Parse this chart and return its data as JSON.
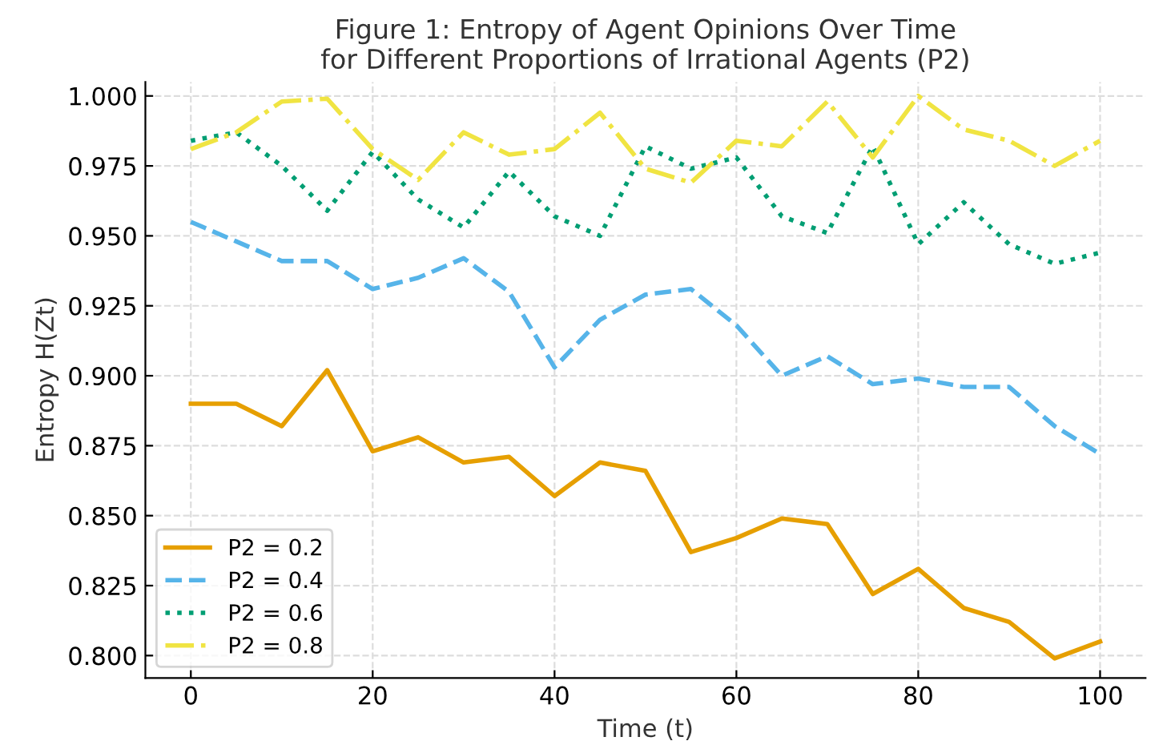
{
  "chart_data": {
    "type": "line",
    "title": "Figure 1: Entropy of Agent Opinions Over Time\nfor Different Proportions of Irrational Agents (P2)",
    "xlabel": "Time (t)",
    "ylabel": "Entropy H(Zt)",
    "x": [
      0,
      5,
      10,
      15,
      20,
      25,
      30,
      35,
      40,
      45,
      50,
      55,
      60,
      65,
      70,
      75,
      80,
      85,
      90,
      95,
      100
    ],
    "series": [
      {
        "name": "P2 = 0.2",
        "color": "#e69f00",
        "line_style": "solid",
        "values": [
          0.89,
          0.89,
          0.882,
          0.902,
          0.873,
          0.878,
          0.869,
          0.871,
          0.857,
          0.869,
          0.866,
          0.837,
          0.842,
          0.849,
          0.847,
          0.822,
          0.831,
          0.817,
          0.812,
          0.799,
          0.805
        ]
      },
      {
        "name": "P2 = 0.4",
        "color": "#56b4e9",
        "line_style": "dashed",
        "values": [
          0.955,
          0.948,
          0.941,
          0.941,
          0.931,
          0.935,
          0.942,
          0.93,
          0.903,
          0.92,
          0.929,
          0.931,
          0.918,
          0.9,
          0.907,
          0.897,
          0.899,
          0.896,
          0.896,
          0.882,
          0.872
        ]
      },
      {
        "name": "P2 = 0.6",
        "color": "#009e73",
        "line_style": "dotted",
        "values": [
          0.984,
          0.987,
          0.975,
          0.959,
          0.98,
          0.963,
          0.953,
          0.973,
          0.957,
          0.95,
          0.982,
          0.974,
          0.978,
          0.957,
          0.951,
          0.982,
          0.947,
          0.962,
          0.947,
          0.94,
          0.944
        ]
      },
      {
        "name": "P2 = 0.8",
        "color": "#f0e442",
        "line_style": "dashdot",
        "values": [
          0.981,
          0.987,
          0.998,
          0.999,
          0.981,
          0.97,
          0.987,
          0.979,
          0.981,
          0.994,
          0.974,
          0.969,
          0.984,
          0.982,
          0.998,
          0.978,
          1.0,
          0.988,
          0.984,
          0.975,
          0.984
        ]
      }
    ],
    "xlim": [
      -5,
      105
    ],
    "xticks": [
      0,
      20,
      40,
      60,
      80,
      100
    ],
    "ylim": [
      0.792,
      1.005
    ],
    "yticks": [
      {
        "value": 0.8,
        "label": "0.800"
      },
      {
        "value": 0.825,
        "label": "0.825"
      },
      {
        "value": 0.85,
        "label": "0.850"
      },
      {
        "value": 0.875,
        "label": "0.875"
      },
      {
        "value": 0.9,
        "label": "0.900"
      },
      {
        "value": 0.925,
        "label": "0.925"
      },
      {
        "value": 0.95,
        "label": "0.950"
      },
      {
        "value": 0.975,
        "label": "0.975"
      },
      {
        "value": 1.0,
        "label": "1.000"
      }
    ],
    "grid": true,
    "legend": "bottom left"
  }
}
